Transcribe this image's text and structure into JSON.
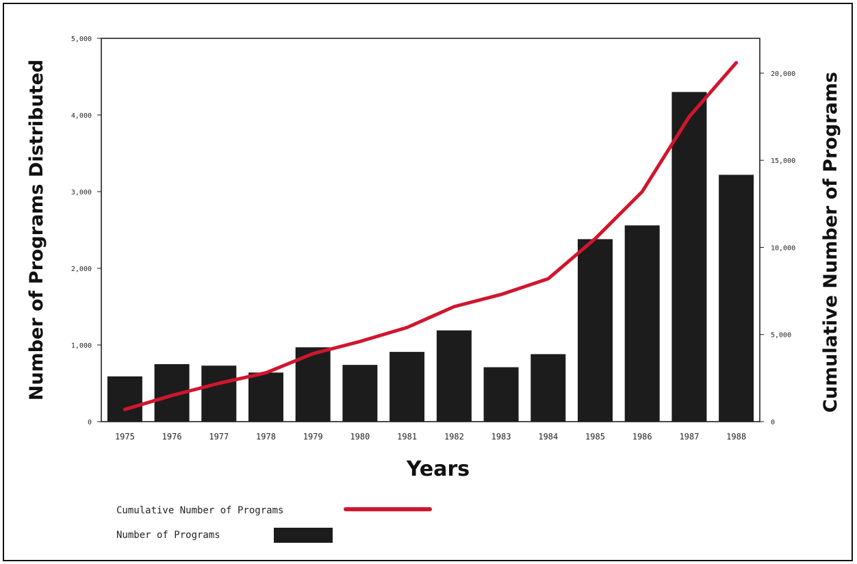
{
  "chart_data": {
    "type": "bar",
    "categories": [
      "1975",
      "1976",
      "1977",
      "1978",
      "1979",
      "1980",
      "1981",
      "1982",
      "1983",
      "1984",
      "1985",
      "1986",
      "1987",
      "1988"
    ],
    "series": [
      {
        "name": "Number of Programs",
        "type": "bar",
        "axis": "left",
        "color": "#1c1c1c",
        "values": [
          590,
          750,
          730,
          640,
          970,
          740,
          910,
          1190,
          710,
          880,
          2380,
          2560,
          4300,
          3220
        ]
      },
      {
        "name": "Cumulative Number of Programs",
        "type": "line",
        "axis": "right",
        "color": "#d0162e",
        "values": [
          700,
          1500,
          2200,
          2800,
          3900,
          4600,
          5400,
          6600,
          7300,
          8200,
          10500,
          13200,
          17500,
          20600
        ]
      }
    ],
    "xlabel": "Years",
    "ylabel": "Number of Programs Distributed",
    "y2label": "Cumulative Number of Programs",
    "ylim": [
      0,
      5000
    ],
    "y2lim": [
      0,
      22000
    ],
    "yticks": [
      "0",
      "1,000",
      "2,000",
      "3,000",
      "4,000",
      "5,000"
    ],
    "yticks_values": [
      0,
      1000,
      2000,
      3000,
      4000,
      5000
    ],
    "y2ticks": [
      "0",
      "5,000",
      "10,000",
      "15,000",
      "20,000"
    ],
    "y2ticks_values": [
      0,
      5000,
      10000,
      15000,
      20000
    ],
    "legend": [
      {
        "label": "Cumulative Number of Programs",
        "kind": "line",
        "color": "#d0162e"
      },
      {
        "label": "Number of Programs",
        "kind": "bar",
        "color": "#1c1c1c"
      }
    ],
    "legend_position": "bottom-left",
    "grid": false
  }
}
